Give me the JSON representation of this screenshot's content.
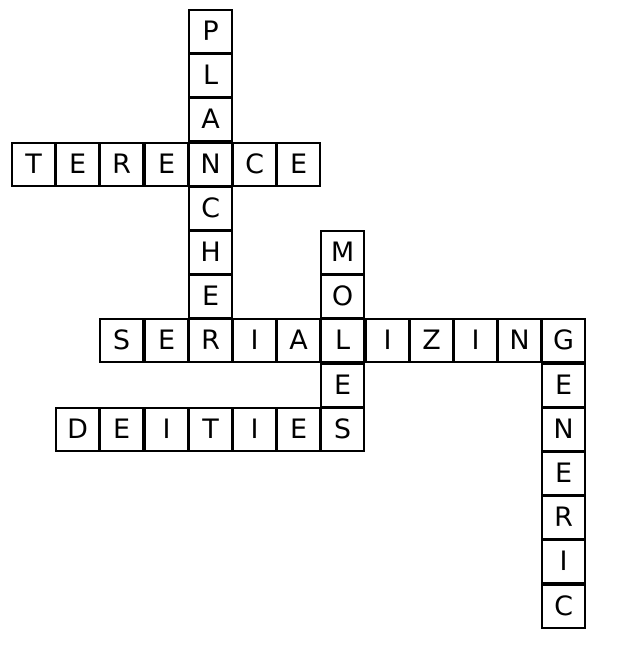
{
  "puzzle": {
    "words": [
      {
        "id": "planche",
        "word": "PLANCHE",
        "direction": "down",
        "row": 0,
        "col": 4
      },
      {
        "id": "terence",
        "word": "TERENCE",
        "direction": "across",
        "row": 3,
        "col": 0
      },
      {
        "id": "moles",
        "word": "MOLES",
        "direction": "down",
        "row": 5,
        "col": 7
      },
      {
        "id": "serializing",
        "word": "SERIALIZING",
        "direction": "across",
        "row": 7,
        "col": 2
      },
      {
        "id": "generic",
        "word": "GENERIC",
        "direction": "down",
        "row": 7,
        "col": 12
      },
      {
        "id": "deities",
        "word": "DEITIES",
        "direction": "across",
        "row": 9,
        "col": 1
      }
    ]
  }
}
